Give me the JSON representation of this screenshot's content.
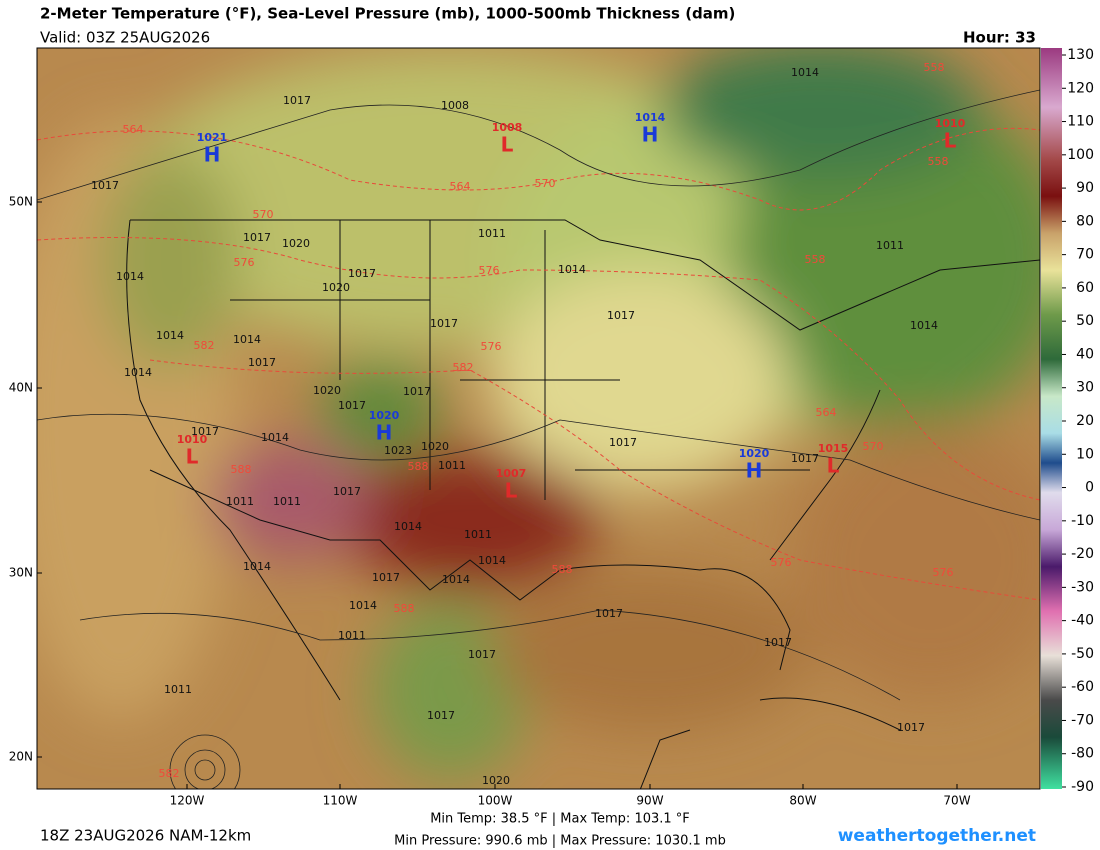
{
  "header": {
    "title": "2-Meter Temperature (°F), Sea-Level Pressure (mb), 1000-500mb Thickness (dam)",
    "valid": "Valid: 03Z 25AUG2026",
    "hour": "Hour: 33"
  },
  "colorbar": {
    "ticks": [
      130,
      120,
      110,
      100,
      90,
      80,
      70,
      60,
      50,
      40,
      30,
      20,
      10,
      0,
      -10,
      -20,
      -30,
      -40,
      -50,
      -60,
      -70,
      -80,
      -90
    ]
  },
  "axes": {
    "lat_labels": [
      "50N",
      "40N",
      "30N",
      "20N"
    ],
    "lon_labels": [
      "120W",
      "110W",
      "100W",
      "90W",
      "80W",
      "70W"
    ]
  },
  "pressure_centers": [
    {
      "letter": "H",
      "value": "1021"
    },
    {
      "letter": "L",
      "value": "1008"
    },
    {
      "letter": "H",
      "value": "1014"
    },
    {
      "letter": "L",
      "value": "1010"
    },
    {
      "letter": "L",
      "value": "1010"
    },
    {
      "letter": "H",
      "value": "1020"
    },
    {
      "letter": "H",
      "value": "1020"
    },
    {
      "letter": "L",
      "value": "1015"
    },
    {
      "letter": "L",
      "value": "1007"
    }
  ],
  "isobar_labels": [
    "1017",
    "1008",
    "1014",
    "1017",
    "1017",
    "1020",
    "1011",
    "1014",
    "1014",
    "1017",
    "1020",
    "1017",
    "1017",
    "1014",
    "1014",
    "1017",
    "1014",
    "1020",
    "1017",
    "1017",
    "1017",
    "1014",
    "1023",
    "1020",
    "1011",
    "1017",
    "1017",
    "1011",
    "1014",
    "1017",
    "1011",
    "1011",
    "1014",
    "1011",
    "1014",
    "1014",
    "1017",
    "1014",
    "1014",
    "1017",
    "1011",
    "1017",
    "1017",
    "1011",
    "1017",
    "1017",
    "1020"
  ],
  "thickness_labels": [
    "564",
    "570",
    "564",
    "570",
    "576",
    "576",
    "582",
    "576",
    "582",
    "588",
    "588",
    "564",
    "570",
    "558",
    "558",
    "558",
    "588",
    "588",
    "576",
    "576",
    "582"
  ],
  "footer": {
    "run": "18Z 23AUG2026 NAM-12km",
    "temps": "Min Temp:  38.5 °F | Max Temp: 103.1 °F",
    "pressures": "Min Pressure: 990.6 mb | Max Pressure: 1030.1 mb",
    "site": "weathertogether.net"
  }
}
